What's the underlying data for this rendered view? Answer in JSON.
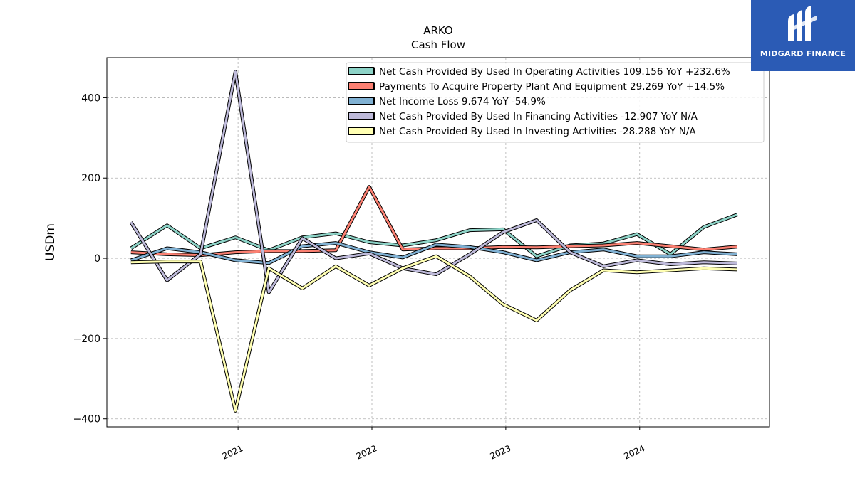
{
  "logo": {
    "brand": "MIDGARD FINANCE",
    "icon": "midgard-m-icon",
    "color": "#2b5bb5"
  },
  "chart_data": {
    "type": "line",
    "title": "ARKO",
    "subtitle": "Cash Flow",
    "ylabel": "USDm",
    "xlabel": "",
    "ylim": [
      -420,
      500
    ],
    "yticks": [
      400,
      200,
      0,
      -200,
      -400
    ],
    "ytick_labels": [
      "400",
      "200",
      "0",
      "−200",
      "−400"
    ],
    "xlim": [
      2020.02,
      2024.97
    ],
    "xticks": [
      2021.0,
      2022.0,
      2023.0,
      2024.0
    ],
    "xtick_labels": [
      "2021",
      "2022",
      "2023",
      "2024"
    ],
    "grid": true,
    "legend_position": "top-right",
    "x": [
      2020.2,
      2020.47,
      2020.72,
      2020.98,
      2021.23,
      2021.48,
      2021.73,
      2021.98,
      2022.23,
      2022.48,
      2022.73,
      2022.98,
      2023.23,
      2023.48,
      2023.73,
      2023.98,
      2024.23,
      2024.48,
      2024.73
    ],
    "series": [
      {
        "name": "Net Cash Provided By Used In Operating Activities",
        "legend_label": "Net Cash Provided By Used In Operating Activities  109.156 YoY +232.6%",
        "color": "#8dd3c7",
        "values": [
          25,
          82,
          25,
          52,
          20,
          52,
          62,
          40,
          32,
          45,
          70,
          72,
          5,
          32,
          37,
          60,
          10,
          78,
          109
        ]
      },
      {
        "name": "Payments To Acquire Property Plant And Equipment",
        "legend_label": "Payments To Acquire Property Plant And Equipment  29.269 YoY +14.5%",
        "color": "#fb8072",
        "values": [
          15,
          10,
          8,
          15,
          18,
          18,
          20,
          178,
          22,
          25,
          25,
          28,
          27,
          30,
          32,
          38,
          30,
          22,
          29
        ]
      },
      {
        "name": "Net Income Loss",
        "legend_label": "Net Income Loss  9.674 YoY -54.9%",
        "color": "#80b1d3",
        "values": [
          -5,
          25,
          15,
          -5,
          -12,
          30,
          38,
          15,
          2,
          34,
          28,
          15,
          -5,
          15,
          22,
          5,
          5,
          15,
          10
        ]
      },
      {
        "name": "Net Cash Provided By Used In Financing Activities",
        "legend_label": "Net Cash Provided By Used In Financing Activities  -12.907 YoY N/A",
        "color": "#bebada",
        "values": [
          90,
          -55,
          10,
          465,
          -85,
          50,
          0,
          12,
          -25,
          -40,
          10,
          65,
          95,
          15,
          -20,
          -5,
          -15,
          -10,
          -13
        ]
      },
      {
        "name": "Net Cash Provided By Used In Investing Activities",
        "legend_label": "Net Cash Provided By Used In Investing Activities  -28.288 YoY N/A",
        "color": "#ffffb3",
        "values": [
          -10,
          -8,
          -8,
          -380,
          -25,
          -75,
          -20,
          -68,
          -25,
          5,
          -45,
          -115,
          -155,
          -80,
          -30,
          -35,
          -30,
          -25,
          -28
        ]
      }
    ]
  }
}
